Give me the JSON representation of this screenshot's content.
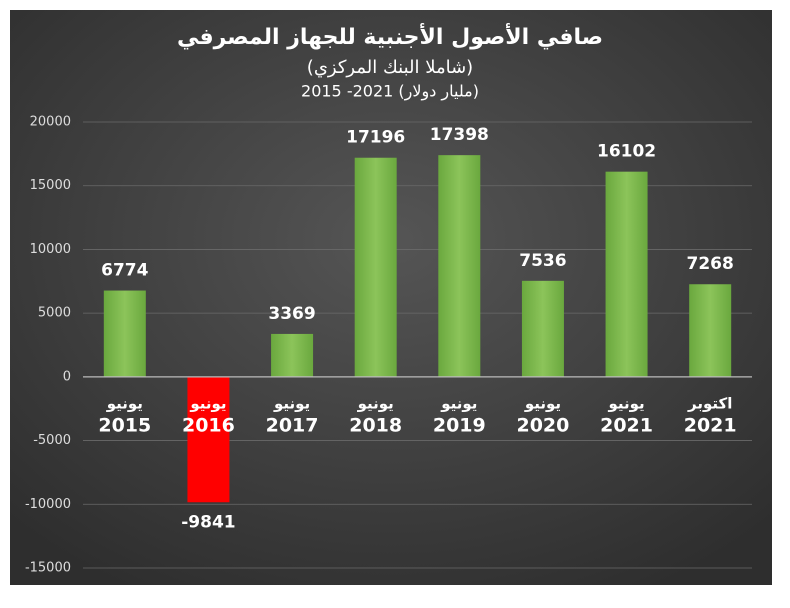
{
  "chart_data": {
    "type": "bar",
    "title": "صافي الأصول الأجنبية للجهاز المصرفي",
    "subtitle": "(شاملا البنك المركزي)",
    "subtitle2": "2015 -2021 (مليار دولار)",
    "categories": [
      [
        "يونيو",
        "2015"
      ],
      [
        "يونيو",
        "2016"
      ],
      [
        "يونيو",
        "2017"
      ],
      [
        "يونيو",
        "2018"
      ],
      [
        "يونيو",
        "2019"
      ],
      [
        "يونيو",
        "2020"
      ],
      [
        "يونيو",
        "2021"
      ],
      [
        "اكتوبر",
        "2021"
      ]
    ],
    "values": [
      6774,
      -9841,
      3369,
      17196,
      17398,
      7536,
      16102,
      7268
    ],
    "colors": [
      "#70ad47",
      "#ff0000",
      "#70ad47",
      "#70ad47",
      "#70ad47",
      "#70ad47",
      "#70ad47",
      "#70ad47"
    ],
    "ylim": [
      -15000,
      20000
    ],
    "yticks": [
      -15000,
      -10000,
      -5000,
      0,
      5000,
      10000,
      15000,
      20000
    ],
    "grid": true
  }
}
